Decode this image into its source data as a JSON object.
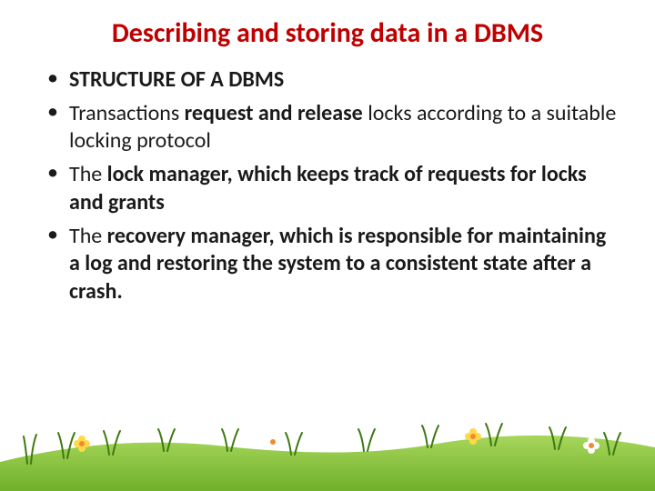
{
  "title": {
    "text": "Describing and storing data in a DBMS",
    "color": "#c00000",
    "fontsize": 30
  },
  "body": {
    "color": "#1a1a1a",
    "fontsize": 24,
    "line_height": 1.28,
    "bullets": [
      {
        "runs": [
          {
            "text": "STRUCTURE OF A DBMS",
            "bold": true
          }
        ]
      },
      {
        "runs": [
          {
            "text": "Transactions ",
            "bold": false
          },
          {
            "text": "request and release ",
            "bold": true
          },
          {
            "text": "locks according to a suitable locking protocol",
            "bold": false
          }
        ]
      },
      {
        "runs": [
          {
            "text": "The ",
            "bold": false
          },
          {
            "text": "lock manager, which keeps track of requests for locks and grants",
            "bold": true
          }
        ]
      },
      {
        "runs": [
          {
            "text": "The ",
            "bold": false
          },
          {
            "text": "recovery manager, which is responsible for maintaining a log and restoring the system to a consistent state after a crash.",
            "bold": true
          }
        ]
      }
    ]
  },
  "decoration": {
    "grass_primary": "#6fb02a",
    "grass_dark": "#3f7a12",
    "grass_light": "#a7d65b",
    "flower_yellow": "#ffd94a",
    "flower_white": "#ffffff",
    "flower_center": "#f08c2e",
    "background": "#ffffff"
  }
}
